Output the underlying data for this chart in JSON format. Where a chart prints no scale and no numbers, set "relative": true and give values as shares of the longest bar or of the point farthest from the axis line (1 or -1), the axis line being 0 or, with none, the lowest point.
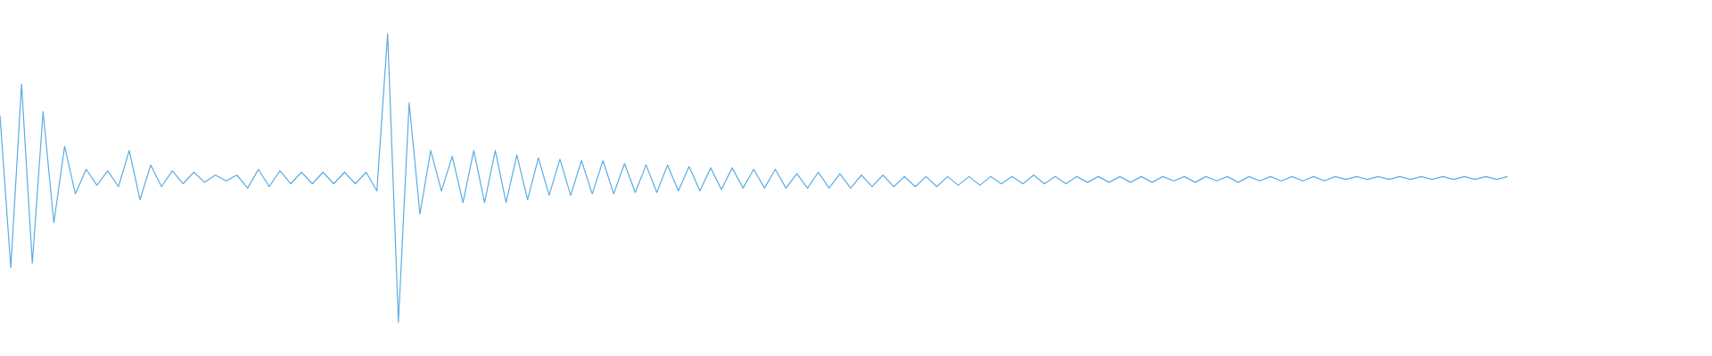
{
  "chart_data": {
    "type": "line",
    "relative": true,
    "color": "#5aade3",
    "marker": "none",
    "categories": [
      null,
      null,
      null,
      null,
      null,
      null,
      null,
      null,
      null,
      null,
      null,
      null,
      null,
      null,
      null,
      null,
      null,
      null,
      null,
      null,
      null,
      null,
      null,
      null,
      null,
      null,
      null,
      null,
      null,
      null,
      null,
      null,
      null,
      null,
      null,
      null,
      null,
      null,
      null,
      null,
      null,
      null,
      null,
      null,
      null,
      null,
      null,
      null,
      null,
      null,
      null,
      null,
      null,
      null,
      null,
      null,
      null,
      null,
      null,
      null,
      null,
      null,
      null,
      null,
      null,
      null,
      null,
      null,
      null,
      null,
      null,
      null,
      null,
      null,
      null,
      null,
      null,
      null,
      null,
      null,
      null,
      null,
      null,
      null,
      null,
      null,
      null,
      null,
      null,
      null,
      null,
      null,
      null,
      null,
      null,
      null,
      null,
      null,
      null,
      null,
      null,
      null,
      null,
      null,
      null,
      null,
      null,
      null,
      null,
      null,
      null,
      null,
      null,
      null,
      null,
      null,
      null,
      null,
      null,
      null,
      null,
      null,
      null,
      null,
      null,
      null,
      null,
      null,
      null,
      null,
      null,
      null,
      null,
      null,
      null,
      null,
      null,
      null,
      null,
      null,
      null,
      null,
      null,
      null,
      null,
      null,
      null,
      null,
      null,
      null,
      null,
      null,
      null,
      null,
      null,
      null,
      null,
      null,
      null,
      null
    ],
    "values": [
      0.715,
      0.19,
      0.825,
      0.205,
      0.73,
      0.345,
      0.61,
      0.445,
      0.53,
      0.475,
      0.525,
      0.47,
      0.595,
      0.425,
      0.545,
      0.47,
      0.525,
      0.48,
      0.52,
      0.485,
      0.51,
      0.49,
      0.51,
      0.465,
      0.53,
      0.47,
      0.525,
      0.48,
      0.52,
      0.48,
      0.52,
      0.48,
      0.52,
      0.48,
      0.52,
      0.455,
      1,
      0,
      0.76,
      0.375,
      0.595,
      0.455,
      0.575,
      0.415,
      0.595,
      0.415,
      0.595,
      0.415,
      0.58,
      0.425,
      0.57,
      0.44,
      0.565,
      0.44,
      0.56,
      0.445,
      0.56,
      0.445,
      0.55,
      0.45,
      0.545,
      0.45,
      0.545,
      0.455,
      0.54,
      0.455,
      0.535,
      0.46,
      0.535,
      0.465,
      0.53,
      0.465,
      0.53,
      0.465,
      0.515,
      0.465,
      0.52,
      0.465,
      0.515,
      0.465,
      0.51,
      0.47,
      0.51,
      0.47,
      0.505,
      0.47,
      0.505,
      0.47,
      0.505,
      0.475,
      0.505,
      0.475,
      0.505,
      0.48,
      0.505,
      0.48,
      0.51,
      0.48,
      0.505,
      0.48,
      0.505,
      0.485,
      0.505,
      0.485,
      0.505,
      0.485,
      0.505,
      0.485,
      0.505,
      0.49,
      0.505,
      0.485,
      0.505,
      0.49,
      0.505,
      0.485,
      0.505,
      0.49,
      0.505,
      0.49,
      0.505,
      0.49,
      0.505,
      0.49,
      0.505,
      0.495,
      0.505,
      0.495,
      0.505,
      0.495,
      0.505,
      0.495,
      0.505,
      0.495,
      0.505,
      0.495,
      0.505,
      0.495,
      0.505,
      0.495,
      0.505,
      null,
      null,
      null,
      null,
      null,
      null,
      null,
      null,
      null,
      null,
      null,
      null,
      null,
      null,
      null,
      null,
      null,
      null,
      null
    ]
  }
}
